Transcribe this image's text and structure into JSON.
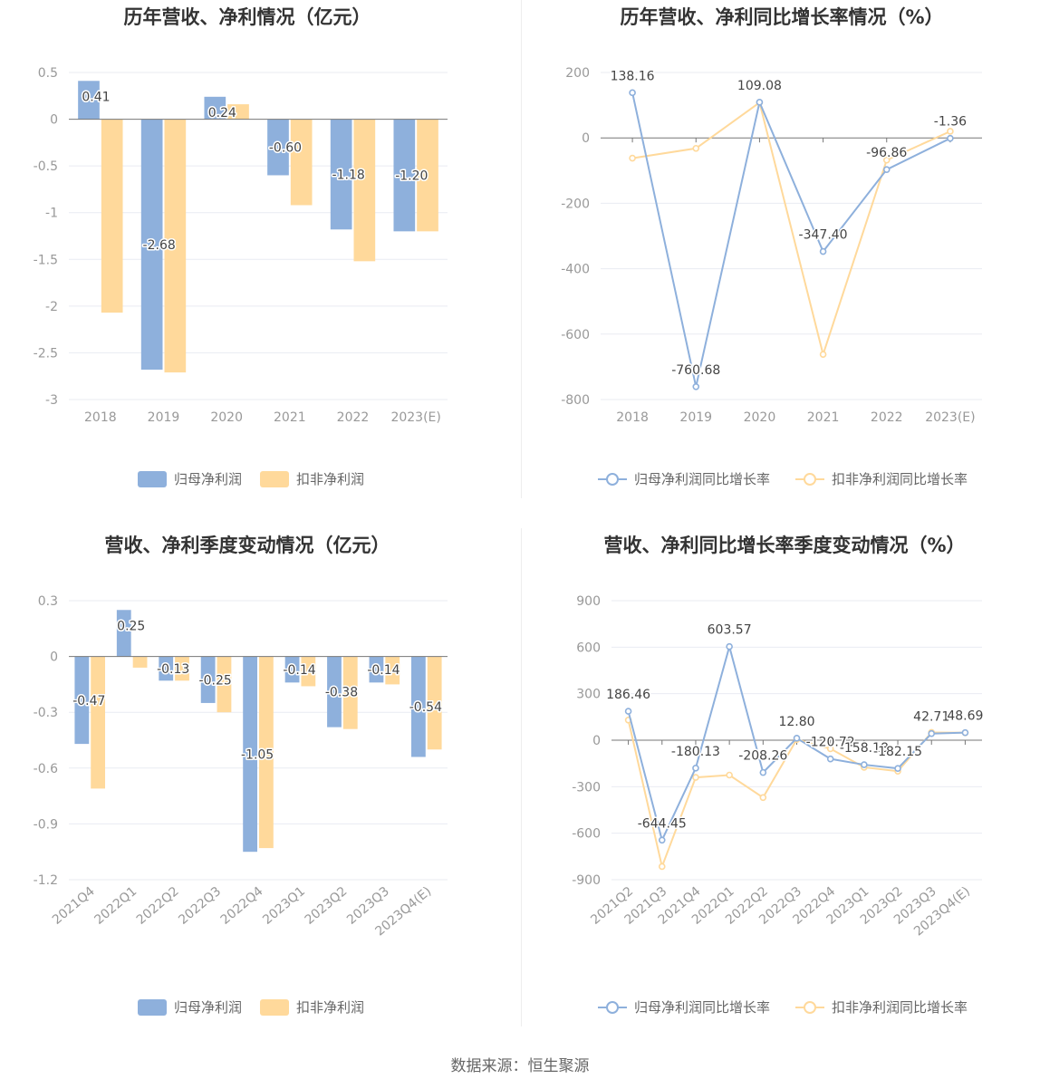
{
  "source_text": "数据来源：恒生聚源",
  "colors": {
    "series1": "#8eb0dc",
    "series2": "#ffd99b",
    "grid": "#e9ebf2",
    "axis": "#777777"
  },
  "chart_data": [
    {
      "type": "bar",
      "title": "历年营收、净利情况（亿元）",
      "categories": [
        "2018",
        "2019",
        "2020",
        "2021",
        "2022",
        "2023(E)"
      ],
      "ylim": [
        -3,
        0.5
      ],
      "yticks": [
        0.5,
        0,
        -0.5,
        -1,
        -1.5,
        -2,
        -2.5,
        -3
      ],
      "ytick_labels": [
        "0.5",
        "0",
        "-0.5",
        "-1",
        "-1.5",
        "-2",
        "-2.5",
        "-3"
      ],
      "series": [
        {
          "name": "归母净利润",
          "values": [
            0.41,
            -2.68,
            0.24,
            -0.6,
            -1.18,
            -1.2
          ],
          "labels": [
            "0.41",
            "-2.68",
            "0.24",
            "-0.60",
            "-1.18",
            "-1.20"
          ]
        },
        {
          "name": "扣非净利润",
          "values": [
            -2.07,
            -2.71,
            0.16,
            -0.92,
            -1.52,
            -1.2
          ]
        }
      ]
    },
    {
      "type": "line",
      "title": "历年营收、净利同比增长率情况（%）",
      "categories": [
        "2018",
        "2019",
        "2020",
        "2021",
        "2022",
        "2023(E)"
      ],
      "ylim": [
        -800,
        200
      ],
      "yticks": [
        200,
        0,
        -200,
        -400,
        -600,
        -800
      ],
      "ytick_labels": [
        "200",
        "0",
        "-200",
        "-400",
        "-600",
        "-800"
      ],
      "series": [
        {
          "name": "归母净利润同比增长率",
          "values": [
            138.16,
            -760.68,
            109.08,
            -347.4,
            -96.86,
            -1.36
          ],
          "labels": [
            "138.16",
            "-760.68",
            "109.08",
            "-347.40",
            "-96.86",
            "-1.36"
          ]
        },
        {
          "name": "扣非净利润同比增长率",
          "values": [
            -62,
            -32,
            108,
            -662,
            -68,
            20
          ]
        }
      ]
    },
    {
      "type": "bar",
      "title": "营收、净利季度变动情况（亿元）",
      "categories": [
        "2021Q4",
        "2022Q1",
        "2022Q2",
        "2022Q3",
        "2022Q4",
        "2023Q1",
        "2023Q2",
        "2023Q3",
        "2023Q4(E)"
      ],
      "ylim": [
        -1.2,
        0.3
      ],
      "yticks": [
        0.3,
        0,
        -0.3,
        -0.6,
        -0.9,
        -1.2
      ],
      "ytick_labels": [
        "0.3",
        "0",
        "-0.3",
        "-0.6",
        "-0.9",
        "-1.2"
      ],
      "series": [
        {
          "name": "归母净利润",
          "values": [
            -0.47,
            0.25,
            -0.13,
            -0.25,
            -1.05,
            -0.14,
            -0.38,
            -0.14,
            -0.54
          ],
          "labels": [
            "-0.47",
            "0.25",
            "-0.13",
            "-0.25",
            "-1.05",
            "-0.14",
            "-0.38",
            "-0.14",
            "-0.54"
          ]
        },
        {
          "name": "扣非净利润",
          "values": [
            -0.71,
            -0.06,
            -0.13,
            -0.3,
            -1.03,
            -0.16,
            -0.39,
            -0.15,
            -0.5
          ]
        }
      ]
    },
    {
      "type": "line",
      "title": "营收、净利同比增长率季度变动情况（%）",
      "categories": [
        "2021Q2",
        "2021Q3",
        "2021Q4",
        "2022Q1",
        "2022Q2",
        "2022Q3",
        "2022Q4",
        "2023Q1",
        "2023Q2",
        "2023Q3",
        "2023Q4(E)"
      ],
      "ylim": [
        -900,
        900
      ],
      "yticks": [
        900,
        600,
        300,
        0,
        -300,
        -600,
        -900
      ],
      "ytick_labels": [
        "900",
        "600",
        "300",
        "0",
        "-300",
        "-600",
        "-900"
      ],
      "series": [
        {
          "name": "归母净利润同比增长率",
          "values": [
            186.46,
            -644.45,
            -180.13,
            603.57,
            -208.26,
            12.8,
            -120.72,
            -158.18,
            -182.15,
            42.71,
            48.69
          ],
          "labels": [
            "186.46",
            "-644.45",
            "-180.13",
            "603.57",
            "-208.26",
            "12.80",
            "-120.72",
            "-158.18",
            "-182.15",
            "42.71",
            "48.69"
          ]
        },
        {
          "name": "扣非净利润同比增长率",
          "values": [
            130,
            -815,
            -240,
            -225,
            -370,
            5,
            -55,
            -175,
            -200,
            50,
            48
          ]
        }
      ]
    }
  ]
}
